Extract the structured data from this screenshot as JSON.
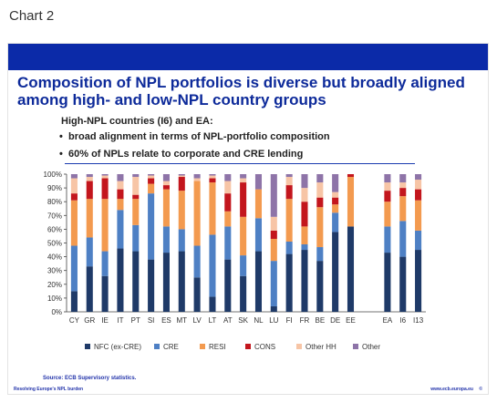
{
  "page": {
    "label": "Chart 2"
  },
  "slide": {
    "title": "Composition of NPL portfolios is diverse but broadly aligned among high- and low-NPL country groups",
    "subtitle": "High-NPL countries (I6) and EA:",
    "bullets": [
      "broad alignment in terms of NPL-portfolio composition",
      "60% of NPLs relate to corporate and CRE lending"
    ],
    "bullet_glyph": "•",
    "source": "Source: ECB Supervisory statistics.",
    "footer_left": "Resolving Europe's NPL burden",
    "footer_right": "www.ecb.europa.eu",
    "page_number": "©"
  },
  "chart_data": {
    "type": "bar",
    "stacked": true,
    "categories": [
      "CY",
      "GR",
      "IE",
      "IT",
      "PT",
      "SI",
      "ES",
      "MT",
      "LV",
      "LT",
      "AT",
      "SK",
      "NL",
      "LU",
      "FI",
      "FR",
      "BE",
      "DE",
      "EE",
      "EA",
      "I6",
      "I13"
    ],
    "gap_after_index": 18,
    "series": [
      {
        "name": "NFC (ex-CRE)",
        "color": "#1f3a68",
        "values": [
          15,
          33,
          26,
          46,
          44,
          38,
          43,
          44,
          25,
          11,
          38,
          26,
          44,
          4,
          42,
          45,
          37,
          58,
          62,
          43,
          40,
          45
        ]
      },
      {
        "name": "CRE",
        "color": "#4e80c4",
        "values": [
          33,
          21,
          18,
          28,
          19,
          48,
          19,
          16,
          23,
          45,
          24,
          15,
          24,
          33,
          9,
          4,
          10,
          14,
          0,
          19,
          26,
          14
        ]
      },
      {
        "name": "RESI",
        "color": "#f39a4f",
        "values": [
          33,
          28,
          38,
          8,
          19,
          7,
          27,
          28,
          47,
          38,
          11,
          28,
          21,
          16,
          31,
          13,
          29,
          6,
          36,
          18,
          18,
          22
        ]
      },
      {
        "name": "CONS",
        "color": "#c3161d",
        "values": [
          5,
          13,
          15,
          7,
          3,
          4,
          3,
          10,
          0,
          3,
          13,
          25,
          0,
          6,
          10,
          18,
          7,
          5,
          2,
          8,
          6,
          8
        ]
      },
      {
        "name": "Other HH",
        "color": "#f7c5a6",
        "values": [
          11,
          3,
          2,
          6,
          13,
          2,
          3,
          1,
          2,
          2,
          9,
          3,
          0,
          10,
          6,
          10,
          11,
          4,
          0,
          6,
          4,
          7
        ]
      },
      {
        "name": "Other",
        "color": "#8e74a8",
        "values": [
          3,
          2,
          1,
          5,
          2,
          1,
          5,
          1,
          3,
          1,
          5,
          3,
          11,
          31,
          2,
          10,
          6,
          13,
          0,
          6,
          6,
          4
        ]
      }
    ],
    "ylim": [
      0,
      100
    ],
    "y_ticks": [
      0,
      10,
      20,
      30,
      40,
      50,
      60,
      70,
      80,
      90,
      100
    ],
    "y_tick_labels": [
      "0%",
      "10%",
      "20%",
      "30%",
      "40%",
      "50%",
      "60%",
      "70%",
      "80%",
      "90%",
      "100%"
    ],
    "grid": false,
    "legend_position": "bottom"
  }
}
